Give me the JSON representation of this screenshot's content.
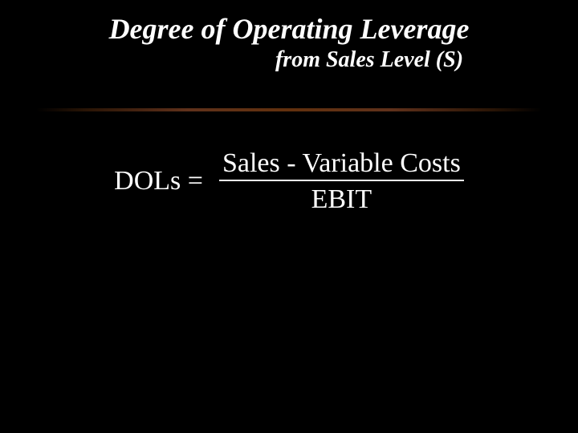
{
  "slide": {
    "title": "Degree of Operating Leverage",
    "subtitle": "from Sales Level (S)",
    "formula": {
      "lhs": "DOLs  =",
      "numerator": "Sales - Variable Costs",
      "denominator": "EBIT"
    }
  },
  "styling": {
    "background_color": "#000000",
    "text_color": "#ffffff",
    "title_fontsize": 36,
    "subtitle_fontsize": 28,
    "formula_fontsize": 34,
    "font_family": "Times New Roman",
    "separator_color": "#8b4513"
  }
}
